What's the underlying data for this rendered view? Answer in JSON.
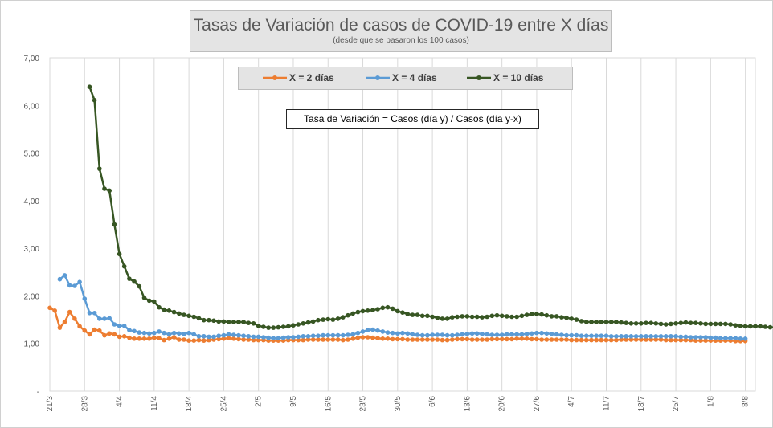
{
  "chart_data": {
    "type": "line",
    "title": "Tasas de Variación de casos de COVID-19 entre X días",
    "subtitle": "(desde que se pasaron los 100 casos)",
    "annotation": "Tasa de Variación = Casos (día y) / Casos (día y-x)",
    "ylim": [
      0,
      7
    ],
    "y_ticks": [
      "-",
      "1,00",
      "2,00",
      "3,00",
      "4,00",
      "5,00",
      "6,00",
      "7,00"
    ],
    "x_start": "2020-03-21",
    "x_end": "2020-08-10",
    "x_ticks": [
      "21/3",
      "28/3",
      "4/4",
      "11/4",
      "18/4",
      "25/4",
      "2/5",
      "9/5",
      "16/5",
      "23/5",
      "30/5",
      "6/6",
      "13/6",
      "20/6",
      "27/6",
      "4/7",
      "11/7",
      "18/7",
      "25/7",
      "1/8",
      "8/8"
    ],
    "grid": "vertical",
    "legend_position": "top-center",
    "series": [
      {
        "name": "X = 2 días",
        "color": "#ed7d31",
        "x_first": "2020-03-21",
        "values": [
          1.75,
          1.69,
          1.33,
          1.45,
          1.66,
          1.52,
          1.36,
          1.27,
          1.19,
          1.29,
          1.27,
          1.17,
          1.21,
          1.19,
          1.14,
          1.15,
          1.12,
          1.1,
          1.1,
          1.1,
          1.1,
          1.12,
          1.11,
          1.07,
          1.1,
          1.13,
          1.08,
          1.08,
          1.06,
          1.06,
          1.07,
          1.06,
          1.07,
          1.08,
          1.09,
          1.1,
          1.11,
          1.1,
          1.09,
          1.08,
          1.08,
          1.07,
          1.07,
          1.07,
          1.06,
          1.06,
          1.06,
          1.06,
          1.07,
          1.07,
          1.07,
          1.07,
          1.08,
          1.08,
          1.08,
          1.08,
          1.08,
          1.08,
          1.08,
          1.07,
          1.08,
          1.1,
          1.12,
          1.13,
          1.13,
          1.12,
          1.11,
          1.1,
          1.1,
          1.09,
          1.09,
          1.09,
          1.08,
          1.08,
          1.08,
          1.08,
          1.08,
          1.08,
          1.08,
          1.07,
          1.07,
          1.08,
          1.09,
          1.09,
          1.09,
          1.08,
          1.08,
          1.08,
          1.08,
          1.09,
          1.09,
          1.09,
          1.09,
          1.09,
          1.1,
          1.1,
          1.1,
          1.09,
          1.09,
          1.08,
          1.08,
          1.08,
          1.08,
          1.08,
          1.08,
          1.07,
          1.07,
          1.07,
          1.07,
          1.07,
          1.07,
          1.07,
          1.07,
          1.07,
          1.07,
          1.08,
          1.08,
          1.08,
          1.08,
          1.08,
          1.08,
          1.08,
          1.08,
          1.08,
          1.07,
          1.07,
          1.07,
          1.07,
          1.07,
          1.07,
          1.06,
          1.06,
          1.06,
          1.06,
          1.06,
          1.06,
          1.06,
          1.06,
          1.05,
          1.05,
          1.05
        ]
      },
      {
        "name": "X = 4 días",
        "color": "#5b9bd5",
        "x_first": "2020-03-23",
        "values": [
          2.35,
          2.43,
          2.22,
          2.21,
          2.29,
          1.94,
          1.64,
          1.64,
          1.52,
          1.52,
          1.53,
          1.4,
          1.37,
          1.37,
          1.28,
          1.26,
          1.23,
          1.22,
          1.21,
          1.22,
          1.25,
          1.22,
          1.19,
          1.22,
          1.21,
          1.2,
          1.22,
          1.19,
          1.15,
          1.15,
          1.14,
          1.14,
          1.16,
          1.17,
          1.19,
          1.18,
          1.17,
          1.16,
          1.15,
          1.14,
          1.14,
          1.13,
          1.12,
          1.11,
          1.11,
          1.12,
          1.13,
          1.13,
          1.14,
          1.15,
          1.15,
          1.16,
          1.16,
          1.17,
          1.17,
          1.17,
          1.17,
          1.17,
          1.18,
          1.19,
          1.22,
          1.25,
          1.28,
          1.29,
          1.27,
          1.25,
          1.23,
          1.22,
          1.21,
          1.22,
          1.21,
          1.19,
          1.18,
          1.17,
          1.17,
          1.18,
          1.18,
          1.18,
          1.17,
          1.17,
          1.18,
          1.19,
          1.2,
          1.21,
          1.21,
          1.2,
          1.19,
          1.18,
          1.18,
          1.18,
          1.19,
          1.19,
          1.19,
          1.19,
          1.2,
          1.21,
          1.22,
          1.22,
          1.21,
          1.2,
          1.19,
          1.18,
          1.17,
          1.17,
          1.17,
          1.16,
          1.16,
          1.16,
          1.16,
          1.16,
          1.16,
          1.15,
          1.15,
          1.15,
          1.15,
          1.15,
          1.15,
          1.15,
          1.15,
          1.15,
          1.15,
          1.15,
          1.15,
          1.15,
          1.15,
          1.14,
          1.14,
          1.13,
          1.13,
          1.13,
          1.13,
          1.12,
          1.12,
          1.11,
          1.11,
          1.11,
          1.11,
          1.1,
          1.1
        ]
      },
      {
        "name": "X = 10 días",
        "color": "#375623",
        "x_first": "2020-03-29",
        "values": [
          6.39,
          6.11,
          4.67,
          4.25,
          4.21,
          3.5,
          2.88,
          2.62,
          2.36,
          2.3,
          2.2,
          1.96,
          1.9,
          1.88,
          1.76,
          1.71,
          1.69,
          1.66,
          1.63,
          1.6,
          1.58,
          1.56,
          1.53,
          1.49,
          1.49,
          1.48,
          1.46,
          1.46,
          1.45,
          1.45,
          1.45,
          1.45,
          1.43,
          1.42,
          1.37,
          1.35,
          1.33,
          1.33,
          1.34,
          1.35,
          1.36,
          1.38,
          1.4,
          1.42,
          1.44,
          1.46,
          1.49,
          1.5,
          1.51,
          1.5,
          1.52,
          1.55,
          1.59,
          1.63,
          1.66,
          1.68,
          1.69,
          1.7,
          1.72,
          1.75,
          1.76,
          1.73,
          1.68,
          1.65,
          1.62,
          1.6,
          1.6,
          1.58,
          1.58,
          1.56,
          1.54,
          1.52,
          1.52,
          1.55,
          1.56,
          1.57,
          1.57,
          1.56,
          1.56,
          1.55,
          1.56,
          1.58,
          1.59,
          1.58,
          1.57,
          1.56,
          1.56,
          1.58,
          1.6,
          1.62,
          1.62,
          1.61,
          1.59,
          1.57,
          1.57,
          1.55,
          1.54,
          1.52,
          1.5,
          1.47,
          1.45,
          1.45,
          1.45,
          1.45,
          1.45,
          1.45,
          1.45,
          1.44,
          1.43,
          1.42,
          1.42,
          1.42,
          1.43,
          1.43,
          1.42,
          1.41,
          1.4,
          1.41,
          1.42,
          1.43,
          1.44,
          1.43,
          1.43,
          1.42,
          1.41,
          1.41,
          1.41,
          1.41,
          1.41,
          1.4,
          1.38,
          1.37,
          1.36,
          1.36,
          1.36,
          1.36,
          1.35,
          1.34,
          1.34
        ]
      }
    ]
  }
}
